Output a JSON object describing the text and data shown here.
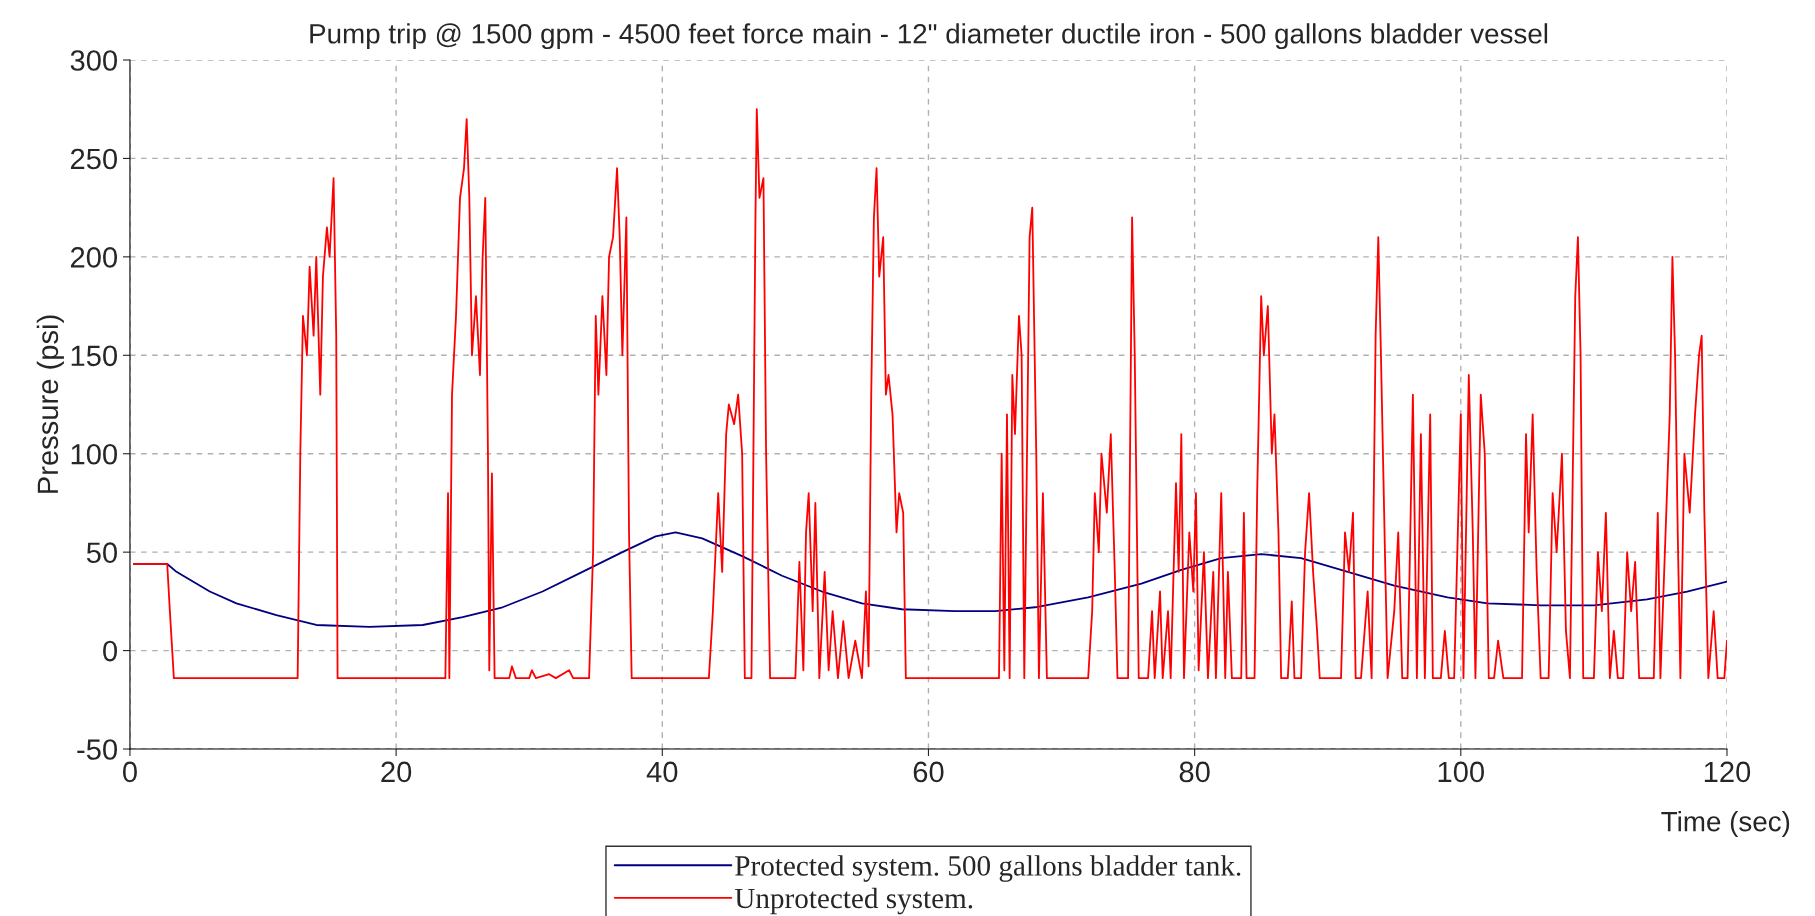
{
  "chart_data": {
    "type": "line",
    "title": "Pump trip @ 1500 gpm - 4500 feet force main - 12\" diameter ductile iron - 500 gallons bladder vessel",
    "xlabel": "Time (sec)",
    "ylabel": "Pressure (psi)",
    "xlim": [
      0,
      120
    ],
    "xticks": [
      0,
      20,
      40,
      60,
      80,
      100,
      120
    ],
    "ylim": [
      -50,
      300
    ],
    "yticks": [
      -50,
      0,
      50,
      100,
      150,
      200,
      250,
      300
    ],
    "grid": true,
    "legend": "bottom",
    "line_style": "solid",
    "marker": "none",
    "series": [
      {
        "name": "Protected system. 500 gallons bladder tank.",
        "color": "#000080",
        "x": [
          0.3,
          2.8,
          3.5,
          4,
          6,
          8,
          11,
          14,
          18,
          22,
          25,
          28,
          31,
          34,
          37,
          39.5,
          41,
          43,
          46,
          49,
          52,
          55,
          58,
          62,
          65,
          68,
          72,
          76,
          79,
          82,
          85,
          88,
          91,
          95,
          99,
          102,
          106,
          110,
          114,
          117,
          120
        ],
        "values": [
          44,
          44,
          40,
          38,
          30,
          24,
          18,
          13,
          12,
          13,
          17,
          22,
          30,
          40,
          50,
          58,
          60,
          57,
          48,
          38,
          30,
          24,
          21,
          20,
          20,
          22,
          27,
          34,
          41,
          47,
          49,
          47,
          41,
          33,
          27,
          24,
          23,
          23,
          26,
          30,
          35
        ]
      },
      {
        "name": "Unprotected system.",
        "color": "#ff0000",
        "x": [
          0.3,
          2.8,
          3.0,
          3.3,
          12.6,
          12.8,
          13,
          13.3,
          13.5,
          13.8,
          14,
          14.3,
          14.5,
          14.8,
          15,
          15.3,
          15.5,
          15.6,
          23.7,
          23.9,
          24,
          24.2,
          24.5,
          24.8,
          25.1,
          25.3,
          25.5,
          25.7,
          26,
          26.3,
          26.5,
          26.7,
          26.9,
          27.0,
          27.2,
          27.4,
          28.5,
          28.7,
          29,
          30,
          30.2,
          30.5,
          31.5,
          32,
          33,
          33.3,
          34.5,
          34.8,
          35,
          35.2,
          35.5,
          35.8,
          36,
          36.3,
          36.6,
          36.8,
          37,
          37.3,
          37.5,
          37.7,
          43.5,
          43.8,
          44.2,
          44.5,
          44.8,
          45,
          45.4,
          45.7,
          46,
          46.2,
          46.7,
          47,
          47.1,
          47.3,
          47.6,
          47.8,
          48.1,
          50,
          50.3,
          50.6,
          50.8,
          51,
          51.3,
          51.5,
          51.8,
          52.2,
          52.5,
          52.8,
          53.2,
          53.6,
          54,
          54.5,
          55,
          55.3,
          55.5,
          55.7,
          55.9,
          56.1,
          56.3,
          56.6,
          56.8,
          57,
          57.3,
          57.6,
          57.8,
          58.1,
          58.3,
          65.3,
          65.5,
          65.7,
          65.9,
          66.1,
          66.3,
          66.5,
          66.8,
          67,
          67.2,
          67.6,
          67.8,
          68.1,
          68.3,
          68.6,
          68.9,
          72,
          72.3,
          72.5,
          72.8,
          73,
          73.4,
          73.7,
          74,
          74.2,
          75,
          75.3,
          75.5,
          75.8,
          76.5,
          76.8,
          77,
          77.4,
          77.6,
          78,
          78.2,
          78.6,
          78.8,
          79,
          79.2,
          79.6,
          79.9,
          80.1,
          80.3,
          80.7,
          81,
          81.4,
          81.6,
          82,
          82.3,
          82.5,
          82.8,
          83.5,
          83.7,
          83.9,
          84.5,
          84.7,
          85,
          85.2,
          85.5,
          85.8,
          86,
          86.3,
          86.5,
          87,
          87.3,
          87.5,
          88,
          88.3,
          88.6,
          88.9,
          89.2,
          89.4,
          91,
          91.3,
          91.6,
          91.9,
          92.1,
          92.5,
          93,
          93.3,
          93.6,
          93.8,
          94,
          94.3,
          94.5,
          95,
          95.3,
          95.6,
          96,
          96.4,
          96.7,
          97,
          97.3,
          97.7,
          97.9,
          98.5,
          98.8,
          99.1,
          99.5,
          100.0,
          100.2,
          100.6,
          100.9,
          101.1,
          101.5,
          101.8,
          102.1,
          102.5,
          102.8,
          103.2,
          104.6,
          104.9,
          105.1,
          105.4,
          105.7,
          106,
          106.6,
          106.9,
          107.2,
          107.6,
          107.9,
          108.2,
          108.6,
          108.8,
          109,
          109.2,
          110,
          110.3,
          110.6,
          110.9,
          111.2,
          111.5,
          111.8,
          112.2,
          112.5,
          112.8,
          113.1,
          113.4,
          114.5,
          114.8,
          115,
          115.7,
          115.9,
          116.1,
          116.3,
          116.5,
          116.8,
          117.2,
          117.6,
          117.9,
          118.1,
          118.3,
          118.6,
          119,
          119.3,
          119.8,
          120
        ],
        "values": [
          44,
          44,
          20,
          -14,
          -14,
          100,
          170,
          150,
          195,
          160,
          200,
          130,
          190,
          215,
          200,
          240,
          160,
          -14,
          -14,
          80,
          -14,
          130,
          170,
          230,
          245,
          270,
          230,
          150,
          180,
          140,
          200,
          230,
          100,
          -10,
          90,
          -14,
          -14,
          -8,
          -14,
          -14,
          -10,
          -14,
          -12,
          -14,
          -10,
          -14,
          -14,
          50,
          170,
          130,
          180,
          140,
          200,
          210,
          245,
          210,
          150,
          220,
          60,
          -14,
          -14,
          20,
          80,
          40,
          110,
          125,
          115,
          130,
          100,
          -14,
          -14,
          220,
          275,
          230,
          240,
          100,
          -14,
          -14,
          45,
          -10,
          60,
          80,
          20,
          75,
          -14,
          40,
          -10,
          20,
          -14,
          15,
          -14,
          5,
          -14,
          30,
          -8,
          130,
          220,
          245,
          190,
          210,
          130,
          140,
          120,
          60,
          80,
          70,
          -14,
          -14,
          100,
          -10,
          120,
          -14,
          140,
          110,
          170,
          150,
          -14,
          210,
          225,
          100,
          -14,
          80,
          -14,
          -14,
          20,
          80,
          50,
          100,
          70,
          110,
          40,
          -14,
          -14,
          220,
          150,
          -14,
          -14,
          20,
          -14,
          30,
          -14,
          20,
          -14,
          85,
          40,
          110,
          -14,
          60,
          30,
          80,
          -10,
          50,
          -14,
          40,
          -14,
          80,
          -14,
          40,
          -14,
          -14,
          70,
          -14,
          -14,
          80,
          180,
          150,
          175,
          100,
          120,
          60,
          -14,
          -14,
          25,
          -14,
          -14,
          50,
          80,
          40,
          10,
          -14,
          -14,
          60,
          40,
          70,
          -14,
          -14,
          30,
          -14,
          160,
          210,
          150,
          50,
          -14,
          20,
          60,
          -14,
          -14,
          130,
          -14,
          110,
          -14,
          120,
          -14,
          -14,
          10,
          -14,
          -14,
          120,
          -14,
          140,
          60,
          -14,
          130,
          100,
          -14,
          -14,
          5,
          -14,
          -14,
          110,
          60,
          120,
          40,
          -14,
          -14,
          80,
          50,
          100,
          10,
          -14,
          180,
          210,
          150,
          -14,
          -14,
          50,
          20,
          70,
          -14,
          10,
          -14,
          -14,
          50,
          20,
          45,
          -14,
          -14,
          70,
          -14,
          120,
          200,
          150,
          60,
          -14,
          100,
          70,
          120,
          150,
          160,
          70,
          -14,
          20,
          -14,
          -14,
          5
        ]
      }
    ]
  }
}
